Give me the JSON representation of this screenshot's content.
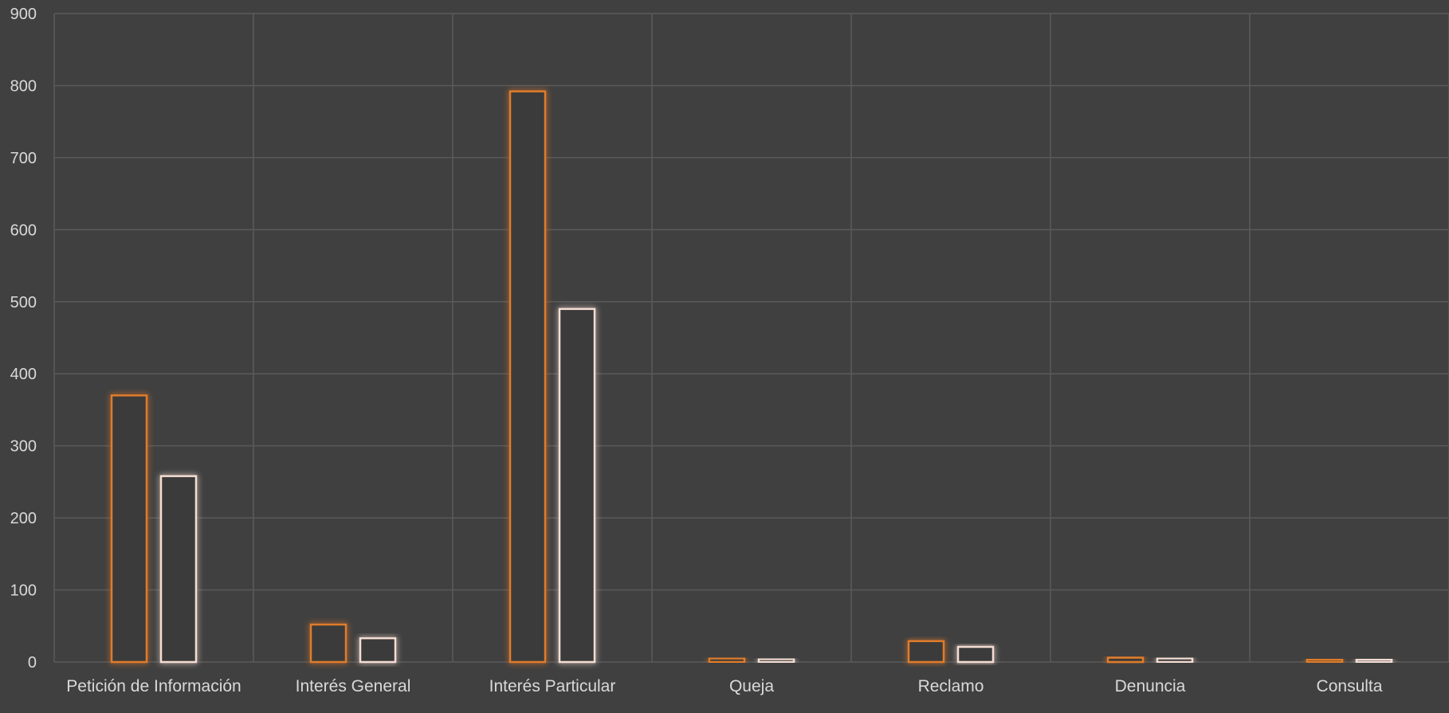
{
  "chart_data": {
    "type": "bar",
    "categories": [
      "Petición de Información",
      "Interés General",
      "Interés Particular",
      "Queja",
      "Reclamo",
      "Denuncia",
      "Consulta"
    ],
    "series": [
      {
        "values": [
          370,
          52,
          792,
          5,
          29,
          6,
          3
        ],
        "color": "#e07b2a"
      },
      {
        "values": [
          258,
          33,
          490,
          4,
          21,
          5,
          2
        ],
        "color": "#f4ddd3"
      }
    ],
    "ylim": [
      0,
      900
    ],
    "yticks": [
      0,
      100,
      200,
      300,
      400,
      500,
      600,
      700,
      800,
      900
    ],
    "grid": true,
    "title": "",
    "xlabel": "",
    "ylabel": "",
    "colors": {
      "background": "#404040",
      "grid": "#5a5a5a",
      "text": "#d9d9d9",
      "fill": "#3a3a3a"
    }
  }
}
